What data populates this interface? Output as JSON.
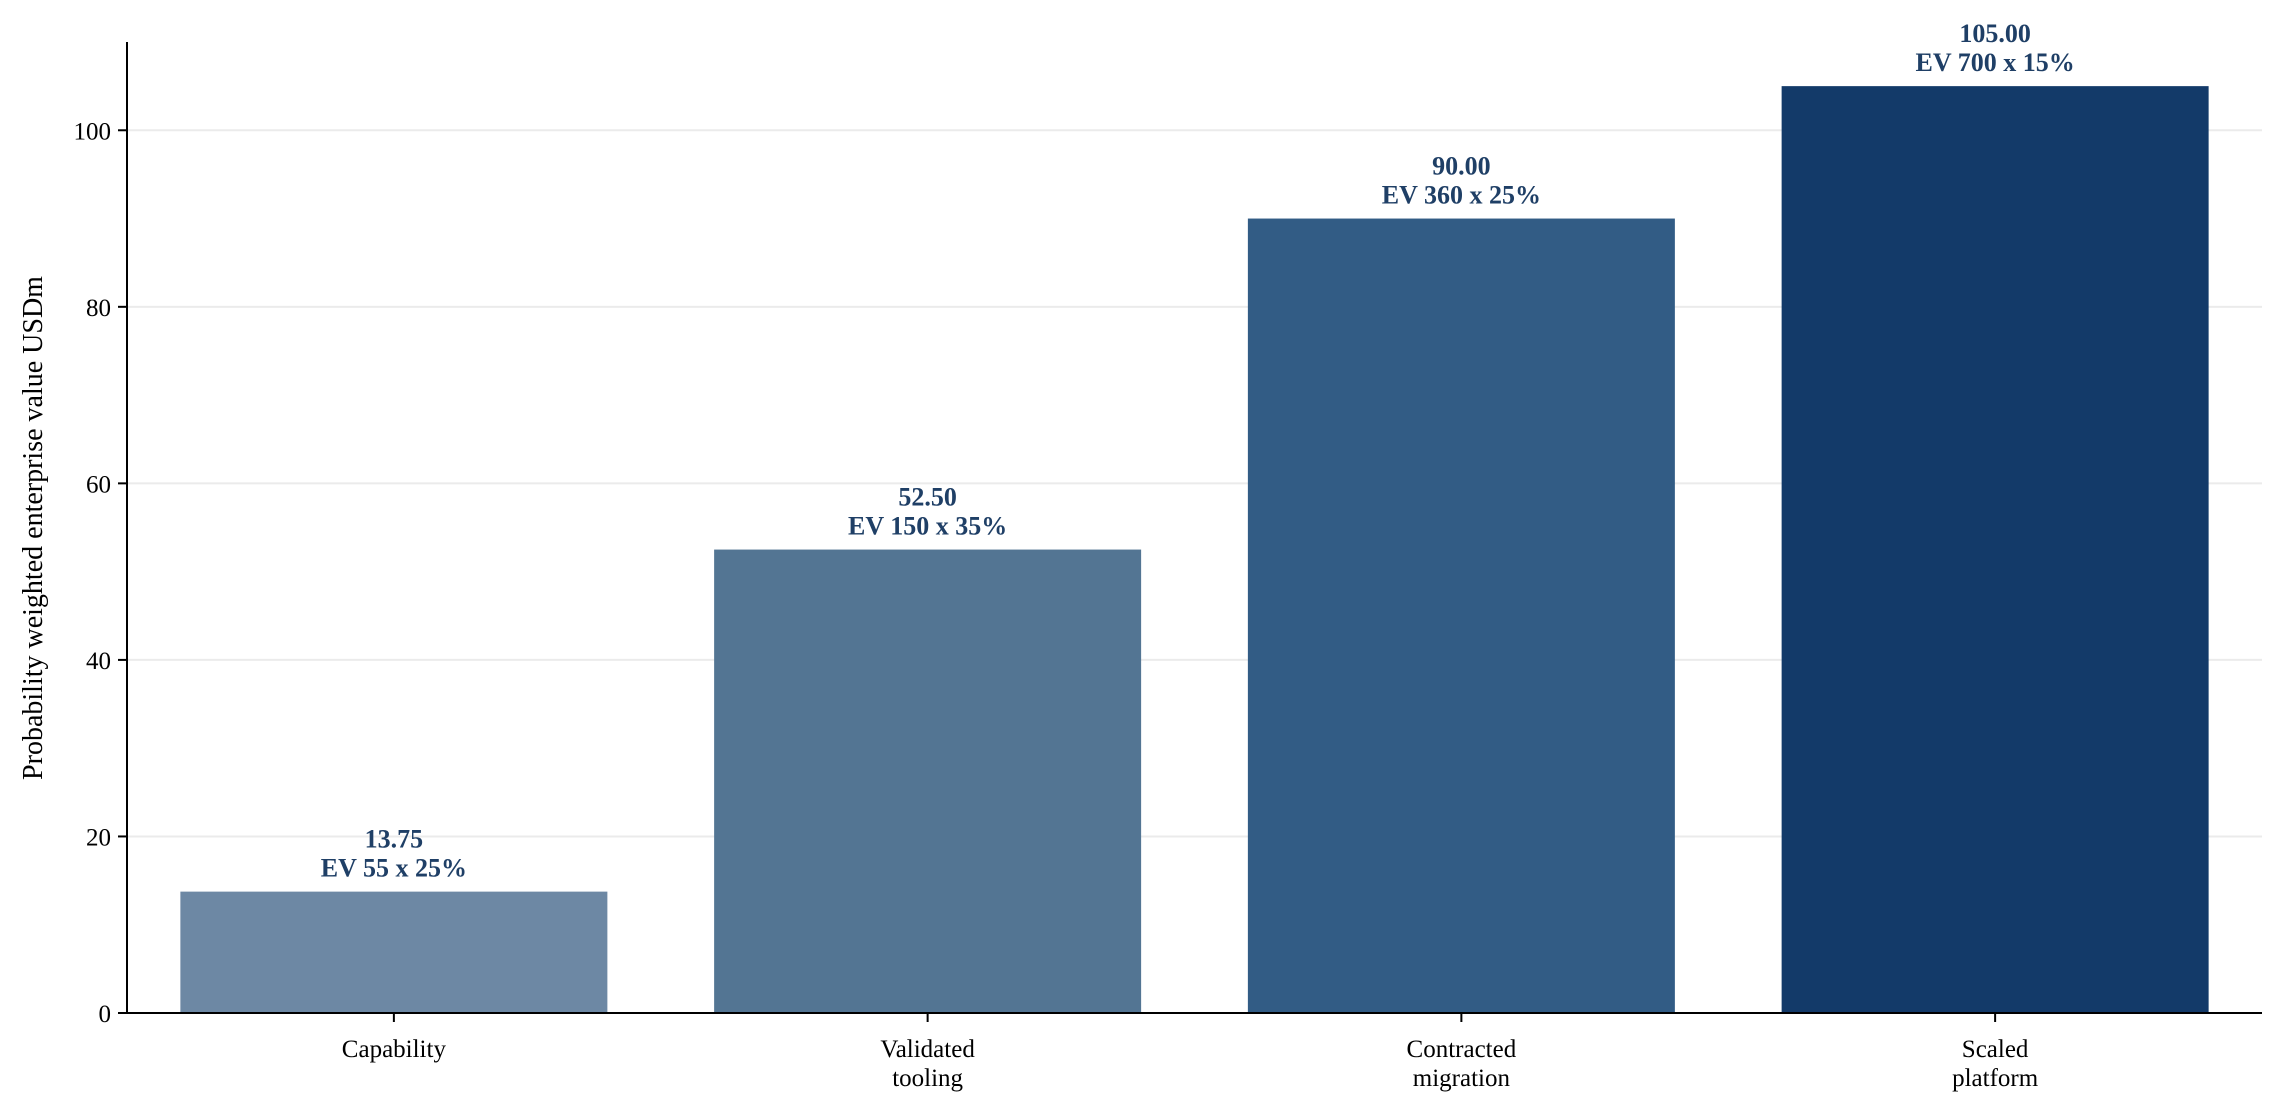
{
  "chart_data": {
    "type": "bar",
    "title": "",
    "xlabel": "",
    "ylabel": "Probability weighted enterprise value USDm",
    "ylim": [
      0,
      110
    ],
    "yticks": [
      0,
      20,
      40,
      60,
      80,
      100
    ],
    "grid": "horizontal",
    "categories": [
      [
        "Capability"
      ],
      [
        "Validated",
        "tooling"
      ],
      [
        "Contracted",
        "migration"
      ],
      [
        "Scaled",
        "platform"
      ]
    ],
    "values": [
      13.75,
      52.5,
      90.0,
      105.0
    ],
    "value_labels": [
      "13.75",
      "52.50",
      "90.00",
      "105.00"
    ],
    "annotations": [
      "EV 55 x 25%",
      "EV 150 x 35%",
      "EV 360 x 25%",
      "EV 700 x 15%"
    ],
    "bar_colors": [
      "#6d88a4",
      "#537593",
      "#325c85",
      "#133a69"
    ],
    "label_color": "#1f3f66",
    "grid_color": "#ebebeb",
    "axis_color": "#000000"
  }
}
